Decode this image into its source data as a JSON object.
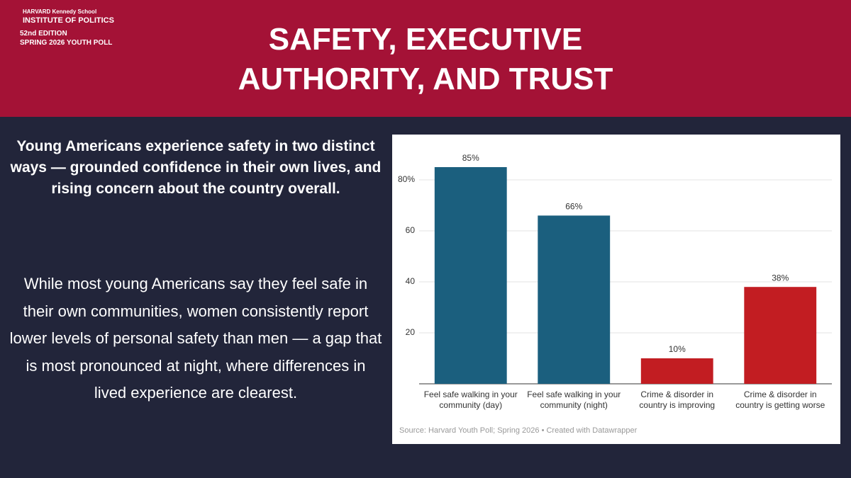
{
  "header": {
    "school": "HARVARD Kennedy School",
    "institute": "INSTITUTE OF POLITICS",
    "edition": "52nd EDITION",
    "poll": "SPRING 2026 YOUTH POLL",
    "title": "SAFETY, EXECUTIVE AUTHORITY, AND TRUST"
  },
  "text": {
    "lead": "Young Americans experience safety in two distinct ways — grounded confidence in their own lives, and rising concern about the country overall.",
    "body": "While most young Americans say they feel safe in their own communities, women consistently report lower levels of personal safety than men — a gap that is most pronounced at night, where differences in lived experience are clearest."
  },
  "chart_data": {
    "type": "bar",
    "categories": [
      "Feel safe walking in your community (day)",
      "Feel safe walking in your community (night)",
      "Crime & disorder in country is improving",
      "Crime & disorder in country is getting worse"
    ],
    "values": [
      85,
      66,
      10,
      38
    ],
    "value_labels": [
      "85%",
      "66%",
      "10%",
      "38%"
    ],
    "colors": [
      "#1b5f7e",
      "#1b5f7e",
      "#c21d22",
      "#c21d22"
    ],
    "ylim": [
      0,
      90
    ],
    "yticks": [
      20,
      40,
      60,
      {
        "value": 80,
        "label": "80%"
      }
    ],
    "grid": true,
    "source": "Source: Harvard Youth Poll; Spring 2026 • Created with Datawrapper"
  }
}
